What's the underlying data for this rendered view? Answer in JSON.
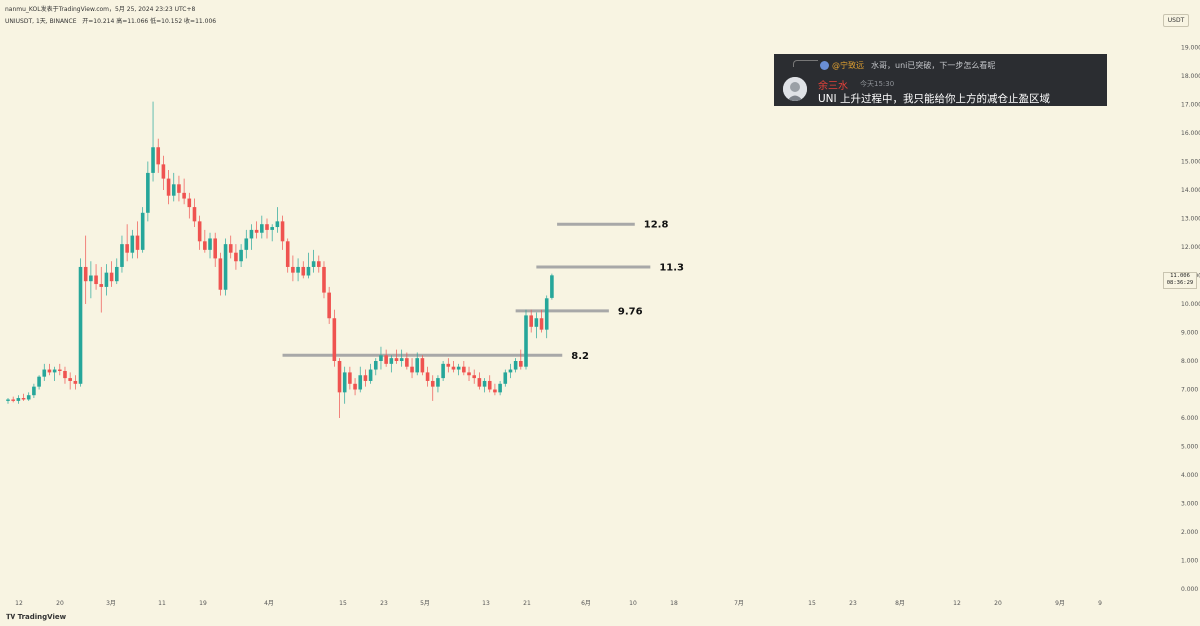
{
  "header": {
    "line1": "nanmu_KOL发表于TradingView.com，5月 25, 2024 23:23 UTC+8",
    "symbol": "UNIUSDT, 1天, BINANCE",
    "ohlc": "开=10.214  高=11.066  低=10.152  收=11.006"
  },
  "colors": {
    "background": "#f8f4e2",
    "up": "#26a69a",
    "down": "#ef5350",
    "level_line": "#a8a8a8"
  },
  "price_axis": {
    "unit": "USDT",
    "labels": [
      "19.000",
      "18.000",
      "17.000",
      "16.000",
      "15.000",
      "14.000",
      "13.000",
      "12.000",
      "11.000",
      "10.000",
      "9.000",
      "8.000",
      "7.000",
      "6.000",
      "5.000",
      "4.000",
      "3.000",
      "2.000",
      "1.000",
      "0.000"
    ],
    "last_price": "11.006",
    "countdown": "08:36:29"
  },
  "time_axis": {
    "labels": [
      "12",
      "20",
      "3月",
      "11",
      "19",
      "4月",
      "15",
      "23",
      "5月",
      "13",
      "21",
      "6月",
      "10",
      "18",
      "7月",
      "15",
      "23",
      "8月",
      "12",
      "20",
      "9月",
      "9"
    ]
  },
  "chart_data": {
    "type": "candlestick",
    "symbol": "UNIUSDT",
    "interval": "1D",
    "exchange": "BINANCE",
    "ylim": [
      0,
      19.5
    ],
    "start_date": "2024-02-09",
    "candles": [
      [
        6.6,
        6.7,
        6.5,
        6.65
      ],
      [
        6.65,
        6.75,
        6.55,
        6.6
      ],
      [
        6.6,
        6.8,
        6.5,
        6.7
      ],
      [
        6.7,
        6.85,
        6.6,
        6.65
      ],
      [
        6.65,
        6.9,
        6.6,
        6.8
      ],
      [
        6.8,
        7.2,
        6.7,
        7.1
      ],
      [
        7.1,
        7.5,
        7.0,
        7.45
      ],
      [
        7.45,
        7.9,
        7.3,
        7.7
      ],
      [
        7.7,
        7.9,
        7.5,
        7.6
      ],
      [
        7.6,
        7.8,
        7.3,
        7.7
      ],
      [
        7.7,
        7.9,
        7.5,
        7.65
      ],
      [
        7.65,
        7.8,
        7.2,
        7.4
      ],
      [
        7.4,
        7.6,
        7.0,
        7.3
      ],
      [
        7.3,
        7.5,
        7.0,
        7.2
      ],
      [
        7.2,
        11.6,
        7.1,
        11.3
      ],
      [
        11.3,
        12.4,
        10.0,
        10.8
      ],
      [
        10.8,
        11.5,
        10.2,
        11.0
      ],
      [
        11.0,
        11.4,
        10.5,
        10.7
      ],
      [
        10.7,
        11.3,
        9.7,
        10.6
      ],
      [
        10.6,
        11.4,
        10.3,
        11.1
      ],
      [
        11.1,
        11.5,
        10.6,
        10.8
      ],
      [
        10.8,
        11.6,
        10.7,
        11.3
      ],
      [
        11.3,
        12.4,
        11.1,
        12.1
      ],
      [
        12.1,
        12.8,
        11.5,
        11.8
      ],
      [
        11.8,
        12.6,
        11.6,
        12.4
      ],
      [
        12.4,
        12.9,
        11.6,
        11.9
      ],
      [
        11.9,
        13.4,
        11.8,
        13.2
      ],
      [
        13.2,
        15.0,
        12.9,
        14.6
      ],
      [
        14.6,
        17.1,
        14.3,
        15.5
      ],
      [
        15.5,
        15.8,
        14.6,
        14.9
      ],
      [
        14.9,
        15.2,
        14.0,
        14.4
      ],
      [
        14.4,
        14.7,
        13.5,
        13.8
      ],
      [
        13.8,
        14.6,
        13.6,
        14.2
      ],
      [
        14.2,
        14.5,
        13.6,
        13.9
      ],
      [
        13.9,
        14.4,
        13.5,
        13.7
      ],
      [
        13.7,
        13.9,
        13.0,
        13.4
      ],
      [
        13.4,
        13.7,
        12.7,
        12.9
      ],
      [
        12.9,
        13.1,
        11.9,
        12.2
      ],
      [
        12.2,
        12.6,
        11.8,
        11.9
      ],
      [
        11.9,
        12.5,
        11.6,
        12.3
      ],
      [
        12.3,
        12.5,
        11.3,
        11.6
      ],
      [
        11.6,
        11.8,
        10.3,
        10.5
      ],
      [
        10.5,
        12.3,
        10.3,
        12.1
      ],
      [
        12.1,
        12.4,
        11.6,
        11.8
      ],
      [
        11.8,
        12.1,
        11.2,
        11.5
      ],
      [
        11.5,
        12.1,
        11.3,
        11.9
      ],
      [
        11.9,
        12.6,
        11.6,
        12.3
      ],
      [
        12.3,
        12.8,
        11.9,
        12.6
      ],
      [
        12.6,
        12.9,
        12.3,
        12.5
      ],
      [
        12.5,
        13.1,
        12.3,
        12.8
      ],
      [
        12.8,
        13.0,
        12.3,
        12.6
      ],
      [
        12.6,
        12.8,
        12.2,
        12.7
      ],
      [
        12.7,
        13.4,
        12.5,
        12.9
      ],
      [
        12.9,
        13.1,
        11.9,
        12.2
      ],
      [
        12.2,
        12.3,
        11.1,
        11.3
      ],
      [
        11.3,
        11.7,
        10.8,
        11.1
      ],
      [
        11.1,
        11.6,
        10.8,
        11.3
      ],
      [
        11.3,
        11.5,
        10.9,
        11.0
      ],
      [
        11.0,
        11.8,
        10.9,
        11.3
      ],
      [
        11.3,
        11.9,
        11.1,
        11.5
      ],
      [
        11.5,
        11.7,
        11.1,
        11.3
      ],
      [
        11.3,
        11.5,
        10.2,
        10.4
      ],
      [
        10.4,
        10.6,
        9.3,
        9.5
      ],
      [
        9.5,
        9.8,
        7.8,
        8.0
      ],
      [
        8.0,
        8.1,
        6.0,
        6.9
      ],
      [
        6.9,
        7.8,
        6.5,
        7.6
      ],
      [
        7.6,
        7.8,
        7.0,
        7.2
      ],
      [
        7.2,
        7.4,
        6.8,
        7.0
      ],
      [
        7.0,
        7.8,
        6.9,
        7.5
      ],
      [
        7.5,
        7.7,
        7.1,
        7.3
      ],
      [
        7.3,
        7.9,
        7.2,
        7.7
      ],
      [
        7.7,
        8.1,
        7.5,
        8.0
      ],
      [
        8.0,
        8.5,
        7.7,
        8.2
      ],
      [
        8.2,
        8.4,
        7.8,
        7.9
      ],
      [
        7.9,
        8.2,
        7.6,
        8.1
      ],
      [
        8.1,
        8.4,
        7.9,
        8.0
      ],
      [
        8.0,
        8.4,
        7.8,
        8.1
      ],
      [
        8.1,
        8.3,
        7.7,
        7.8
      ],
      [
        7.8,
        8.1,
        7.4,
        7.6
      ],
      [
        7.6,
        8.3,
        7.5,
        8.1
      ],
      [
        8.1,
        8.2,
        7.5,
        7.6
      ],
      [
        7.6,
        7.8,
        7.1,
        7.3
      ],
      [
        7.3,
        7.5,
        6.6,
        7.1
      ],
      [
        7.1,
        7.5,
        6.9,
        7.4
      ],
      [
        7.4,
        8.0,
        7.3,
        7.9
      ],
      [
        7.9,
        8.1,
        7.6,
        7.8
      ],
      [
        7.8,
        8.0,
        7.6,
        7.7
      ],
      [
        7.7,
        7.9,
        7.5,
        7.8
      ],
      [
        7.8,
        8.0,
        7.5,
        7.6
      ],
      [
        7.6,
        7.8,
        7.3,
        7.5
      ],
      [
        7.5,
        7.7,
        7.2,
        7.4
      ],
      [
        7.4,
        7.6,
        7.0,
        7.1
      ],
      [
        7.1,
        7.4,
        6.9,
        7.3
      ],
      [
        7.3,
        7.5,
        6.9,
        7.0
      ],
      [
        7.0,
        7.2,
        6.8,
        6.9
      ],
      [
        6.9,
        7.3,
        6.8,
        7.2
      ],
      [
        7.2,
        7.7,
        7.1,
        7.6
      ],
      [
        7.6,
        7.9,
        7.4,
        7.7
      ],
      [
        7.7,
        8.1,
        7.6,
        8.0
      ],
      [
        8.0,
        8.4,
        7.7,
        7.8
      ],
      [
        7.8,
        9.8,
        7.7,
        9.6
      ],
      [
        9.6,
        9.8,
        9.0,
        9.2
      ],
      [
        9.2,
        9.7,
        8.8,
        9.5
      ],
      [
        9.5,
        9.8,
        9.0,
        9.1
      ],
      [
        9.1,
        10.3,
        8.8,
        10.2
      ],
      [
        10.214,
        11.066,
        10.152,
        11.006
      ]
    ],
    "levels": [
      {
        "price": 12.8,
        "label": "12.8",
        "from_bar": 106,
        "to_bar": 121
      },
      {
        "price": 11.3,
        "label": "11.3",
        "from_bar": 102,
        "to_bar": 124
      },
      {
        "price": 9.76,
        "label": "9.76",
        "from_bar": 98,
        "to_bar": 116
      },
      {
        "price": 8.2,
        "label": "8.2",
        "from_bar": 53,
        "to_bar": 107
      }
    ]
  },
  "chat": {
    "reply_user": "@宁致远",
    "reply_text": "水哥，uni已突破，下一步怎么看呢",
    "author": "余三水",
    "timestamp": "今天15:30",
    "message": "UNI 上升过程中，我只能给你上方的减仓止盈区域"
  },
  "branding": {
    "logo_text": "TradingView"
  }
}
